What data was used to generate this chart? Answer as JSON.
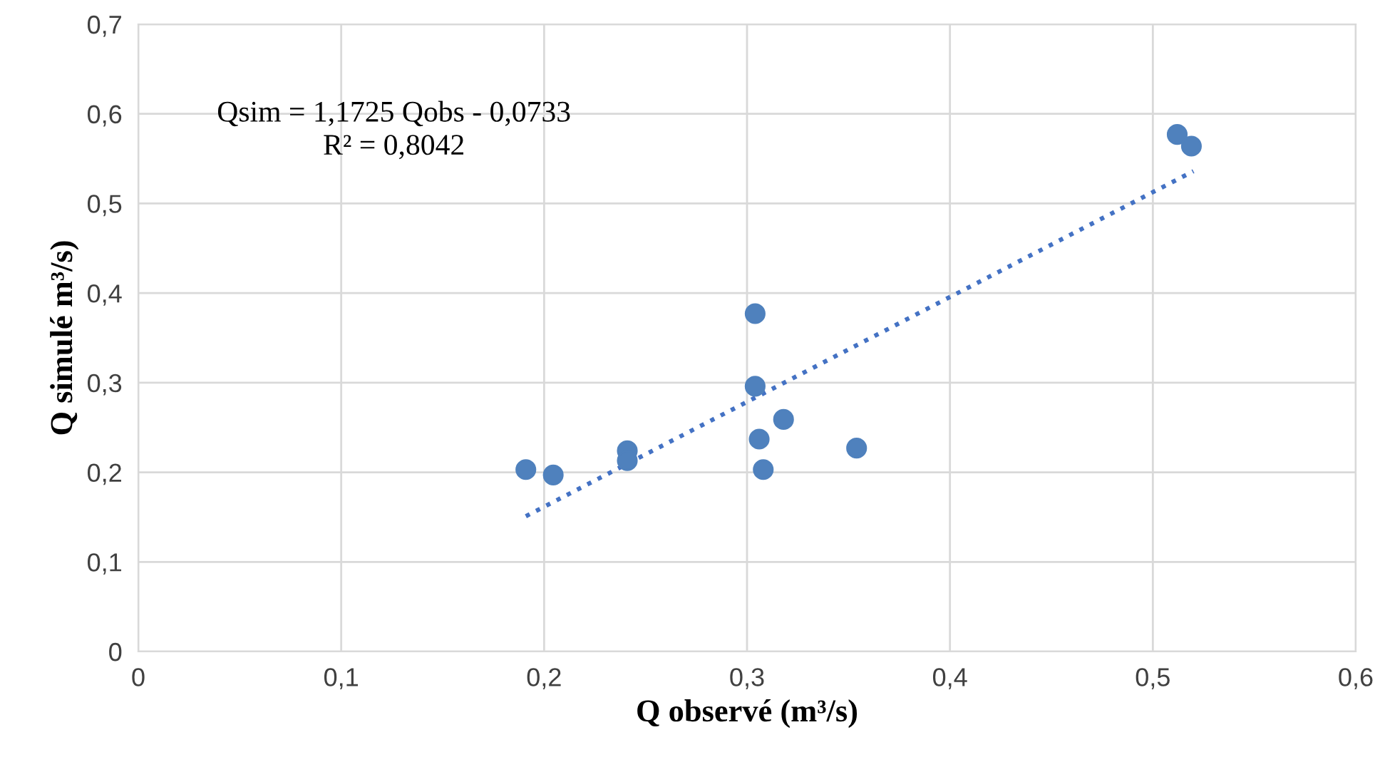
{
  "chart_data": {
    "type": "scatter",
    "xlabel": "Q observé (m³/s)",
    "ylabel": "Q simulé m³/s)",
    "series": [
      {
        "color": "#4f81bd",
        "marker": "circle",
        "x": [
          0.191,
          0.2045,
          0.241,
          0.241,
          0.304,
          0.304,
          0.306,
          0.308,
          0.318,
          0.354,
          0.512,
          0.519
        ],
        "values": [
          0.203,
          0.197,
          0.224,
          0.213,
          0.377,
          0.296,
          0.237,
          0.203,
          0.259,
          0.227,
          0.577,
          0.564
        ]
      },
      {
        "type": "line",
        "color": "#4472c4",
        "line_style": "dotted",
        "marker": "none",
        "x": [
          0.191,
          0.52
        ],
        "values": [
          0.151,
          0.536
        ]
      }
    ],
    "annotations": [
      "Qsim = 1,1725 Qobs - 0,0733\nR² = 0,8042"
    ],
    "xlim": [
      0,
      0.6
    ],
    "ylim": [
      0,
      0.7
    ],
    "xticks": [
      0,
      {
        "value": 0.1,
        "label": "0,1"
      },
      {
        "value": 0.2,
        "label": "0,2"
      },
      {
        "value": 0.3,
        "label": "0,3"
      },
      {
        "value": 0.4,
        "label": "0,4"
      },
      {
        "value": 0.5,
        "label": "0,5"
      },
      {
        "value": 0.6,
        "label": "0,6"
      }
    ],
    "yticks": [
      0,
      {
        "value": 0.1,
        "label": "0,1"
      },
      {
        "value": 0.2,
        "label": "0,2"
      },
      {
        "value": 0.3,
        "label": "0,3"
      },
      {
        "value": 0.4,
        "label": "0,4"
      },
      {
        "value": 0.5,
        "label": "0,5"
      },
      {
        "value": 0.6,
        "label": "0,6"
      },
      {
        "value": 0.7,
        "label": "0,7"
      }
    ],
    "grid": true
  }
}
